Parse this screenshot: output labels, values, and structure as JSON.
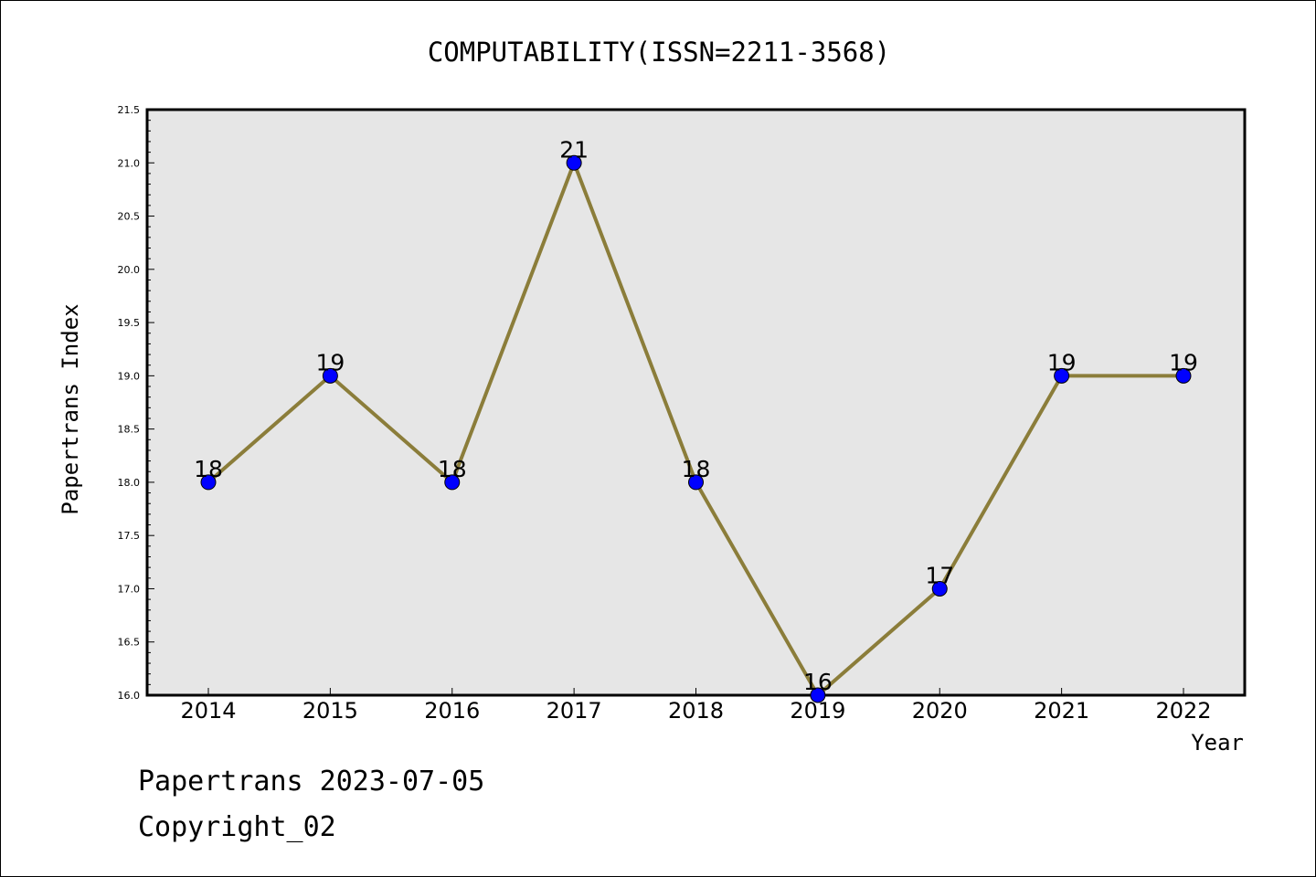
{
  "chart_data": {
    "type": "line",
    "title": "COMPUTABILITY(ISSN=2211-3568)",
    "xlabel": "Year",
    "ylabel": "Papertrans Index",
    "categories": [
      "2014",
      "2015",
      "2016",
      "2017",
      "2018",
      "2019",
      "2020",
      "2021",
      "2022"
    ],
    "series": [
      {
        "values": [
          18,
          19,
          18,
          21,
          18,
          16,
          17,
          19,
          19
        ],
        "data_labels": [
          "18",
          "19",
          "18",
          "21",
          "18",
          "16",
          "17",
          "19",
          "19"
        ]
      }
    ],
    "ylim": [
      16.0,
      21.5
    ],
    "yticks": [
      "16.0",
      "16.5",
      "17.0",
      "17.5",
      "18.0",
      "18.5",
      "19.0",
      "19.5",
      "20.0",
      "20.5",
      "21.0",
      "21.5"
    ],
    "grid": false,
    "legend": "none"
  },
  "colors": {
    "line": "#8b7d3a",
    "marker": "#0000ff",
    "plot_background": "#e6e6e6"
  },
  "footer": {
    "date_line": "Papertrans 2023-07-05",
    "copyright": "Copyright_02"
  }
}
